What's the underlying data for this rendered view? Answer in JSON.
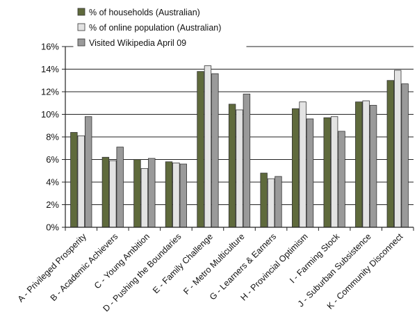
{
  "chart_data": {
    "type": "bar",
    "categories": [
      "A - Privileged Prosperity",
      "B - Academic Achievers",
      "C - Young Ambition",
      "D - Pushing the Boundaries",
      "E - Family Challenge",
      "F - Metro Multiculture",
      "G - Learners & Earners",
      "H - Provincial Optimism",
      "I - Farming Stock",
      "J - Suburban Subsistence",
      "K - Community Disconnect"
    ],
    "series": [
      {
        "name": "% of households (Australian)",
        "color": "#5f6a3c",
        "values": [
          8.4,
          6.2,
          6.0,
          5.8,
          13.8,
          10.9,
          4.8,
          10.5,
          9.7,
          11.1,
          13.0
        ]
      },
      {
        "name": "% of online population (Australian)",
        "color": "#e3e3e3",
        "values": [
          8.1,
          5.9,
          5.2,
          5.7,
          14.3,
          10.4,
          4.3,
          11.1,
          9.8,
          11.2,
          13.9
        ]
      },
      {
        "name": "Visited Wikipedia April 09",
        "color": "#9a9a9a",
        "values": [
          9.8,
          7.1,
          6.1,
          5.6,
          13.6,
          11.8,
          4.5,
          9.6,
          8.5,
          10.8,
          12.7
        ]
      }
    ],
    "y_ticks": [
      "0%",
      "2%",
      "4%",
      "6%",
      "8%",
      "10%",
      "12%",
      "14%",
      "16%"
    ],
    "ylim": [
      0,
      16
    ],
    "grid": true,
    "legend_position": "top-left"
  }
}
